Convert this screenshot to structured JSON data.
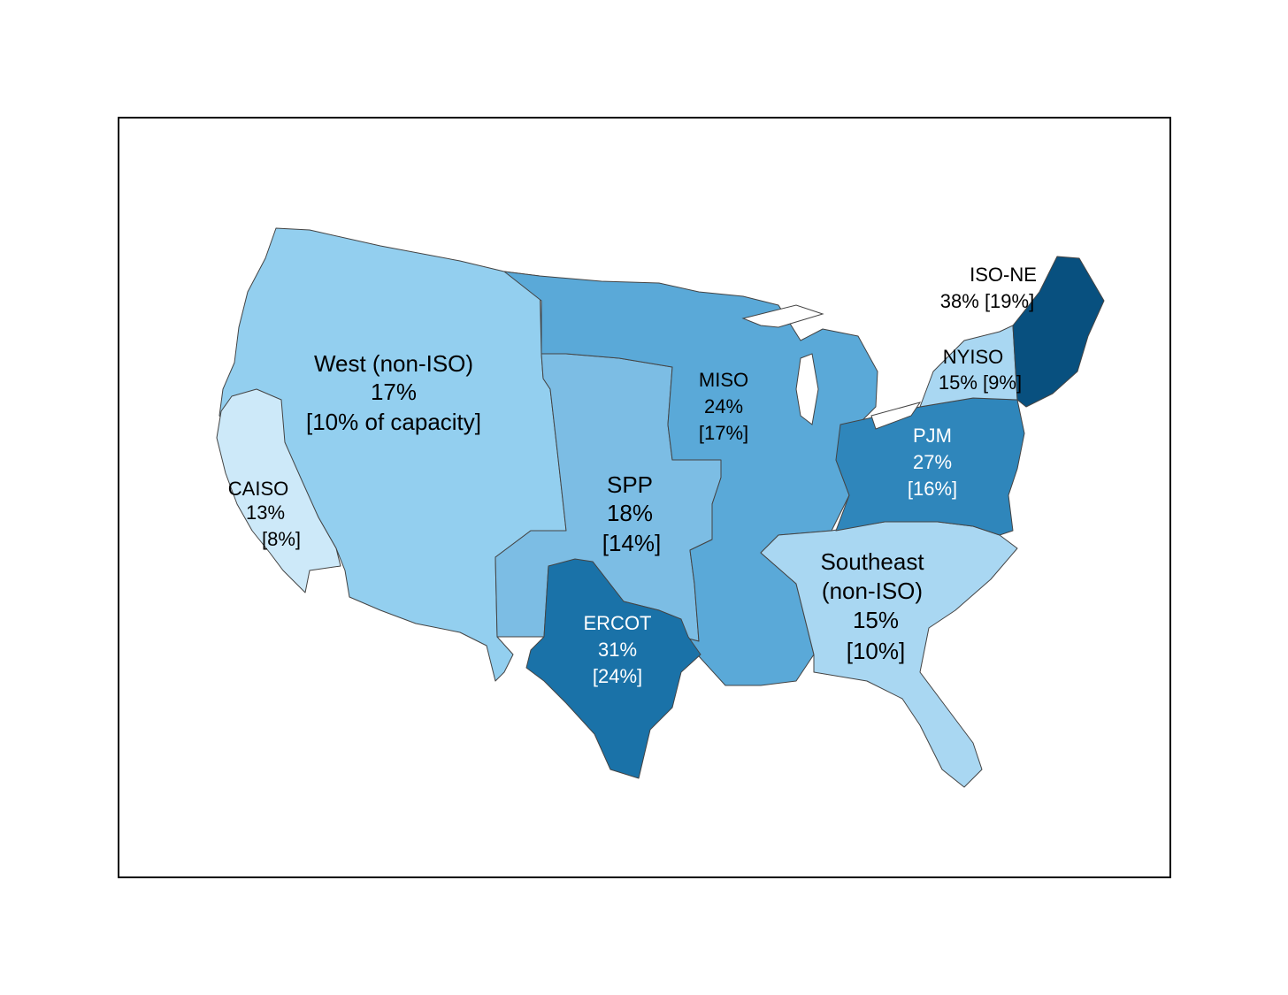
{
  "colors": {
    "background": "#ffffff",
    "frame": "#000000",
    "water": "#ffffff",
    "west": "#93cfef",
    "caiso": "#cde9f9",
    "spp": "#7cbde4",
    "miso": "#5aa9d8",
    "ercot": "#1a72a8",
    "pjm": "#2f86bb",
    "nyiso": "#a9d7f2",
    "isone": "#08507f",
    "southeast": "#a9d7f2",
    "label_dark": "#000000",
    "label_light": "#ffffff"
  },
  "regions": [
    {
      "id": "west",
      "lines": [
        "West (non-ISO)",
        "17%",
        "[10% of capacity]"
      ]
    },
    {
      "id": "caiso",
      "lines": [
        "CAISO",
        "13%",
        "[8%]"
      ]
    },
    {
      "id": "spp",
      "lines": [
        "SPP",
        "18%",
        "[14%]"
      ]
    },
    {
      "id": "miso",
      "lines": [
        "MISO",
        "24%",
        "[17%]"
      ]
    },
    {
      "id": "ercot",
      "lines": [
        "ERCOT",
        "31%",
        "[24%]"
      ]
    },
    {
      "id": "pjm",
      "lines": [
        "PJM",
        "27%",
        "[16%]"
      ]
    },
    {
      "id": "nyiso",
      "lines": [
        "NYISO",
        "15% [9%]"
      ]
    },
    {
      "id": "isone",
      "lines": [
        "ISO-NE",
        "38% [19%]"
      ]
    },
    {
      "id": "southeast",
      "lines": [
        "Southeast",
        "(non-ISO)",
        "15%",
        "[10%]"
      ]
    }
  ]
}
